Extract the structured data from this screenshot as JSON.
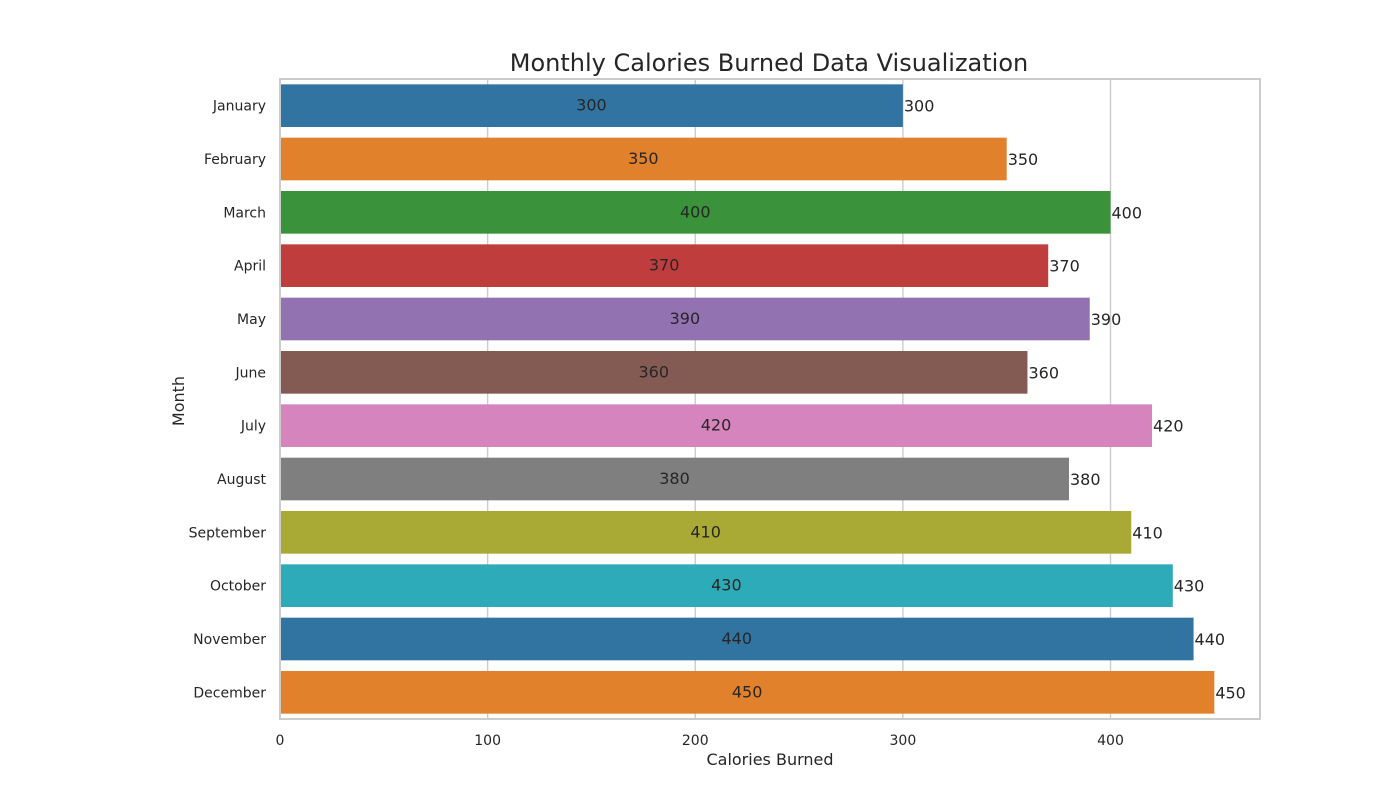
{
  "chart_data": {
    "type": "bar",
    "orientation": "horizontal",
    "title": "Monthly Calories Burned Data Visualization",
    "xlabel": "Calories Burned",
    "ylabel": "Month",
    "xlim": [
      0,
      472
    ],
    "x_ticks": [
      0,
      100,
      200,
      300,
      400
    ],
    "grid": true,
    "categories": [
      "January",
      "February",
      "March",
      "April",
      "May",
      "June",
      "July",
      "August",
      "September",
      "October",
      "November",
      "December"
    ],
    "values": [
      300,
      350,
      400,
      370,
      390,
      360,
      420,
      380,
      410,
      430,
      440,
      450
    ],
    "colors": [
      "#3274a1",
      "#e1812c",
      "#3a923a",
      "#c03d3e",
      "#9372b2",
      "#845b53",
      "#d684bd",
      "#7f7f7f",
      "#a9aa35",
      "#2eabb8",
      "#3274a1",
      "#e1812c"
    ]
  }
}
